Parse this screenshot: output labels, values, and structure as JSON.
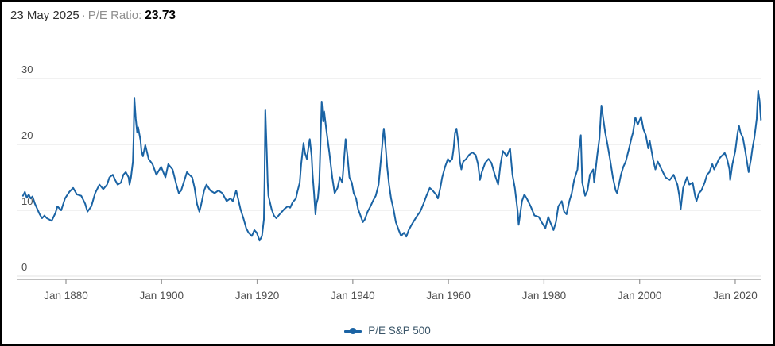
{
  "header": {
    "date": "23 May 2025",
    "separator": "·",
    "metric_label": "P/E Ratio:",
    "metric_value": "23.73"
  },
  "legend": {
    "label": "P/E S&P 500"
  },
  "colors": {
    "line": "#1A63A4",
    "legend_text": "#3A5568",
    "grid": "#E3E3E3",
    "axis": "#9B9B9B",
    "tick_label": "#4F4F4F"
  },
  "chart_data": {
    "type": "line",
    "title": "",
    "xlabel": "",
    "ylabel": "",
    "ylim": [
      0,
      30
    ],
    "xlim": [
      1871,
      2025.4
    ],
    "grid": "horizontal",
    "legend_position": "bottom-center",
    "y_ticks": [
      0,
      10,
      20,
      30
    ],
    "x_ticks": [
      {
        "year": 1880,
        "label": "Jan 1880"
      },
      {
        "year": 1900,
        "label": "Jan 1900"
      },
      {
        "year": 1920,
        "label": "Jan 1920"
      },
      {
        "year": 1940,
        "label": "Jan 1940"
      },
      {
        "year": 1960,
        "label": "Jan 1960"
      },
      {
        "year": 1980,
        "label": "Jan 1980"
      },
      {
        "year": 2000,
        "label": "Jan 2000"
      },
      {
        "year": 2020,
        "label": "Jan 2020"
      }
    ],
    "series": [
      {
        "name": "P/E S&P 500",
        "points": [
          [
            1871.0,
            12.2
          ],
          [
            1871.4,
            12.8
          ],
          [
            1871.8,
            11.9
          ],
          [
            1872.2,
            12.4
          ],
          [
            1872.6,
            11.8
          ],
          [
            1873.0,
            12.1
          ],
          [
            1873.5,
            11.0
          ],
          [
            1874.0,
            10.2
          ],
          [
            1874.5,
            9.4
          ],
          [
            1875.0,
            8.8
          ],
          [
            1875.5,
            9.2
          ],
          [
            1876.0,
            8.8
          ],
          [
            1876.5,
            8.6
          ],
          [
            1877.0,
            8.4
          ],
          [
            1877.8,
            9.6
          ],
          [
            1878.2,
            10.6
          ],
          [
            1879.0,
            10.0
          ],
          [
            1879.8,
            11.8
          ],
          [
            1880.7,
            12.8
          ],
          [
            1881.5,
            13.4
          ],
          [
            1882.3,
            12.4
          ],
          [
            1883.2,
            12.2
          ],
          [
            1884.0,
            11.0
          ],
          [
            1884.5,
            9.8
          ],
          [
            1885.3,
            10.6
          ],
          [
            1886.1,
            12.6
          ],
          [
            1887.0,
            13.9
          ],
          [
            1887.8,
            13.2
          ],
          [
            1888.6,
            13.9
          ],
          [
            1889.1,
            15.0
          ],
          [
            1889.8,
            15.4
          ],
          [
            1890.3,
            14.6
          ],
          [
            1890.8,
            13.9
          ],
          [
            1891.5,
            14.2
          ],
          [
            1892.0,
            15.4
          ],
          [
            1892.5,
            15.8
          ],
          [
            1893.1,
            15.0
          ],
          [
            1893.3,
            13.9
          ],
          [
            1893.6,
            15.0
          ],
          [
            1894.0,
            17.4
          ],
          [
            1894.15,
            21.0
          ],
          [
            1894.3,
            27.1
          ],
          [
            1894.6,
            23.9
          ],
          [
            1894.9,
            21.8
          ],
          [
            1895.1,
            22.6
          ],
          [
            1895.6,
            20.6
          ],
          [
            1895.8,
            19.0
          ],
          [
            1896.1,
            18.2
          ],
          [
            1896.6,
            19.9
          ],
          [
            1897.3,
            17.8
          ],
          [
            1898.1,
            17.0
          ],
          [
            1898.9,
            15.4
          ],
          [
            1899.9,
            16.6
          ],
          [
            1900.8,
            15.0
          ],
          [
            1901.4,
            17.0
          ],
          [
            1902.3,
            16.2
          ],
          [
            1903.1,
            13.9
          ],
          [
            1903.6,
            12.6
          ],
          [
            1904.1,
            13.0
          ],
          [
            1904.8,
            14.6
          ],
          [
            1905.3,
            15.8
          ],
          [
            1905.8,
            15.4
          ],
          [
            1906.4,
            15.0
          ],
          [
            1906.9,
            13.4
          ],
          [
            1907.4,
            11.0
          ],
          [
            1907.9,
            9.8
          ],
          [
            1908.2,
            10.6
          ],
          [
            1908.9,
            13.0
          ],
          [
            1909.4,
            13.9
          ],
          [
            1910.2,
            13.0
          ],
          [
            1911.1,
            12.6
          ],
          [
            1911.9,
            13.0
          ],
          [
            1912.7,
            12.6
          ],
          [
            1913.6,
            11.4
          ],
          [
            1914.4,
            11.8
          ],
          [
            1914.9,
            11.4
          ],
          [
            1915.6,
            13.0
          ],
          [
            1916.0,
            11.8
          ],
          [
            1916.5,
            10.2
          ],
          [
            1917.2,
            8.6
          ],
          [
            1917.7,
            7.3
          ],
          [
            1918.2,
            6.6
          ],
          [
            1918.9,
            6.1
          ],
          [
            1919.4,
            7.0
          ],
          [
            1919.9,
            6.6
          ],
          [
            1920.2,
            6.0
          ],
          [
            1920.5,
            5.4
          ],
          [
            1921.0,
            6.1
          ],
          [
            1921.4,
            8.6
          ],
          [
            1921.55,
            15.0
          ],
          [
            1921.7,
            25.3
          ],
          [
            1922.0,
            19.0
          ],
          [
            1922.2,
            14.2
          ],
          [
            1922.35,
            12.2
          ],
          [
            1923.0,
            10.2
          ],
          [
            1923.5,
            9.2
          ],
          [
            1924.0,
            8.8
          ],
          [
            1924.7,
            9.4
          ],
          [
            1925.2,
            9.8
          ],
          [
            1925.7,
            10.2
          ],
          [
            1926.4,
            10.6
          ],
          [
            1926.9,
            10.4
          ],
          [
            1927.4,
            11.2
          ],
          [
            1928.1,
            11.8
          ],
          [
            1928.4,
            12.8
          ],
          [
            1928.9,
            14.2
          ],
          [
            1929.2,
            17.0
          ],
          [
            1929.7,
            20.2
          ],
          [
            1930.0,
            18.7
          ],
          [
            1930.4,
            17.8
          ],
          [
            1930.7,
            19.4
          ],
          [
            1931.0,
            20.8
          ],
          [
            1931.4,
            18.2
          ],
          [
            1931.6,
            15.4
          ],
          [
            1931.9,
            12.6
          ],
          [
            1932.2,
            9.4
          ],
          [
            1932.4,
            11.0
          ],
          [
            1932.7,
            11.8
          ],
          [
            1933.0,
            14.2
          ],
          [
            1933.2,
            19.0
          ],
          [
            1933.5,
            26.5
          ],
          [
            1933.8,
            23.5
          ],
          [
            1934.0,
            25.0
          ],
          [
            1934.5,
            22.0
          ],
          [
            1935.1,
            18.7
          ],
          [
            1935.7,
            15.0
          ],
          [
            1936.2,
            12.6
          ],
          [
            1936.8,
            13.4
          ],
          [
            1937.3,
            15.0
          ],
          [
            1937.8,
            14.2
          ],
          [
            1938.1,
            17.0
          ],
          [
            1938.5,
            20.8
          ],
          [
            1938.9,
            18.2
          ],
          [
            1939.3,
            15.0
          ],
          [
            1939.8,
            14.2
          ],
          [
            1940.2,
            12.6
          ],
          [
            1940.7,
            11.8
          ],
          [
            1941.1,
            10.2
          ],
          [
            1941.6,
            9.2
          ],
          [
            1942.1,
            8.2
          ],
          [
            1942.5,
            8.6
          ],
          [
            1943.1,
            9.8
          ],
          [
            1943.7,
            10.6
          ],
          [
            1944.2,
            11.4
          ],
          [
            1944.8,
            12.2
          ],
          [
            1945.4,
            13.9
          ],
          [
            1945.9,
            17.8
          ],
          [
            1946.4,
            21.8
          ],
          [
            1946.5,
            22.4
          ],
          [
            1946.9,
            19.4
          ],
          [
            1947.2,
            16.6
          ],
          [
            1947.6,
            13.9
          ],
          [
            1948.0,
            11.8
          ],
          [
            1948.5,
            10.2
          ],
          [
            1949.0,
            8.2
          ],
          [
            1949.6,
            7.0
          ],
          [
            1950.1,
            6.1
          ],
          [
            1950.7,
            6.6
          ],
          [
            1951.2,
            6.0
          ],
          [
            1951.7,
            7.0
          ],
          [
            1952.3,
            7.8
          ],
          [
            1952.8,
            8.4
          ],
          [
            1953.5,
            9.2
          ],
          [
            1954.1,
            9.8
          ],
          [
            1954.8,
            11.0
          ],
          [
            1955.4,
            12.2
          ],
          [
            1956.1,
            13.4
          ],
          [
            1956.7,
            13.0
          ],
          [
            1957.4,
            12.4
          ],
          [
            1957.8,
            11.8
          ],
          [
            1958.3,
            13.4
          ],
          [
            1958.7,
            15.0
          ],
          [
            1959.3,
            16.6
          ],
          [
            1959.9,
            17.8
          ],
          [
            1960.3,
            17.4
          ],
          [
            1960.8,
            17.8
          ],
          [
            1961.1,
            19.4
          ],
          [
            1961.4,
            21.8
          ],
          [
            1961.7,
            22.4
          ],
          [
            1962.1,
            20.2
          ],
          [
            1962.4,
            17.4
          ],
          [
            1962.7,
            16.2
          ],
          [
            1963.1,
            17.4
          ],
          [
            1963.7,
            17.8
          ],
          [
            1964.3,
            18.4
          ],
          [
            1965.0,
            18.8
          ],
          [
            1965.7,
            18.4
          ],
          [
            1966.2,
            17.0
          ],
          [
            1966.6,
            14.6
          ],
          [
            1967.0,
            15.8
          ],
          [
            1967.7,
            17.2
          ],
          [
            1968.4,
            17.8
          ],
          [
            1969.0,
            17.2
          ],
          [
            1969.7,
            15.4
          ],
          [
            1970.4,
            13.9
          ],
          [
            1970.9,
            17.0
          ],
          [
            1971.4,
            19.0
          ],
          [
            1972.2,
            18.2
          ],
          [
            1972.9,
            19.4
          ],
          [
            1973.4,
            15.4
          ],
          [
            1973.9,
            13.4
          ],
          [
            1974.5,
            9.8
          ],
          [
            1974.7,
            7.8
          ],
          [
            1975.4,
            11.4
          ],
          [
            1975.9,
            12.4
          ],
          [
            1976.4,
            11.8
          ],
          [
            1977.2,
            10.6
          ],
          [
            1978.0,
            9.2
          ],
          [
            1978.9,
            9.0
          ],
          [
            1979.5,
            8.2
          ],
          [
            1980.3,
            7.3
          ],
          [
            1980.9,
            9.0
          ],
          [
            1981.3,
            8.2
          ],
          [
            1982.0,
            7.0
          ],
          [
            1982.5,
            8.2
          ],
          [
            1983.0,
            10.6
          ],
          [
            1983.7,
            11.4
          ],
          [
            1984.2,
            9.8
          ],
          [
            1984.7,
            9.4
          ],
          [
            1985.3,
            11.4
          ],
          [
            1985.8,
            12.6
          ],
          [
            1986.3,
            14.6
          ],
          [
            1987.0,
            16.2
          ],
          [
            1987.3,
            19.0
          ],
          [
            1987.7,
            21.4
          ],
          [
            1988.0,
            14.2
          ],
          [
            1988.6,
            12.2
          ],
          [
            1989.1,
            13.0
          ],
          [
            1989.6,
            15.4
          ],
          [
            1990.3,
            16.2
          ],
          [
            1990.5,
            14.2
          ],
          [
            1991.1,
            18.2
          ],
          [
            1991.6,
            21.0
          ],
          [
            1992.0,
            25.9
          ],
          [
            1992.8,
            21.8
          ],
          [
            1993.3,
            19.9
          ],
          [
            1993.8,
            17.8
          ],
          [
            1994.4,
            15.0
          ],
          [
            1995.0,
            13.0
          ],
          [
            1995.3,
            12.6
          ],
          [
            1996.1,
            15.4
          ],
          [
            1996.6,
            16.6
          ],
          [
            1997.1,
            17.4
          ],
          [
            1997.8,
            19.4
          ],
          [
            1998.3,
            21.0
          ],
          [
            1998.6,
            21.8
          ],
          [
            1999.1,
            24.1
          ],
          [
            1999.6,
            23.0
          ],
          [
            2000.3,
            24.2
          ],
          [
            2000.8,
            22.3
          ],
          [
            2001.3,
            21.4
          ],
          [
            2001.8,
            19.4
          ],
          [
            2002.1,
            20.6
          ],
          [
            2002.8,
            17.8
          ],
          [
            2003.3,
            16.2
          ],
          [
            2003.8,
            17.4
          ],
          [
            2004.6,
            16.2
          ],
          [
            2005.4,
            15.0
          ],
          [
            2006.3,
            14.6
          ],
          [
            2007.1,
            15.4
          ],
          [
            2007.9,
            13.9
          ],
          [
            2008.3,
            12.2
          ],
          [
            2008.6,
            10.2
          ],
          [
            2009.1,
            13.4
          ],
          [
            2009.9,
            15.0
          ],
          [
            2010.4,
            13.9
          ],
          [
            2011.1,
            14.2
          ],
          [
            2011.6,
            12.2
          ],
          [
            2011.9,
            11.4
          ],
          [
            2012.4,
            12.6
          ],
          [
            2012.9,
            13.0
          ],
          [
            2013.6,
            14.2
          ],
          [
            2014.1,
            15.4
          ],
          [
            2014.6,
            15.8
          ],
          [
            2015.2,
            17.0
          ],
          [
            2015.6,
            16.2
          ],
          [
            2016.1,
            17.0
          ],
          [
            2016.6,
            17.8
          ],
          [
            2017.1,
            18.2
          ],
          [
            2017.8,
            18.7
          ],
          [
            2018.3,
            17.8
          ],
          [
            2018.8,
            16.2
          ],
          [
            2018.95,
            14.6
          ],
          [
            2019.4,
            17.0
          ],
          [
            2020.0,
            19.0
          ],
          [
            2020.5,
            21.8
          ],
          [
            2020.8,
            22.8
          ],
          [
            2021.1,
            21.8
          ],
          [
            2021.6,
            21.0
          ],
          [
            2022.1,
            19.0
          ],
          [
            2022.8,
            15.8
          ],
          [
            2023.3,
            17.8
          ],
          [
            2023.6,
            19.4
          ],
          [
            2024.0,
            21.0
          ],
          [
            2024.5,
            23.9
          ],
          [
            2024.65,
            26.3
          ],
          [
            2024.8,
            28.1
          ],
          [
            2025.1,
            26.6
          ],
          [
            2025.25,
            25.0
          ],
          [
            2025.37,
            23.73
          ]
        ]
      }
    ]
  }
}
